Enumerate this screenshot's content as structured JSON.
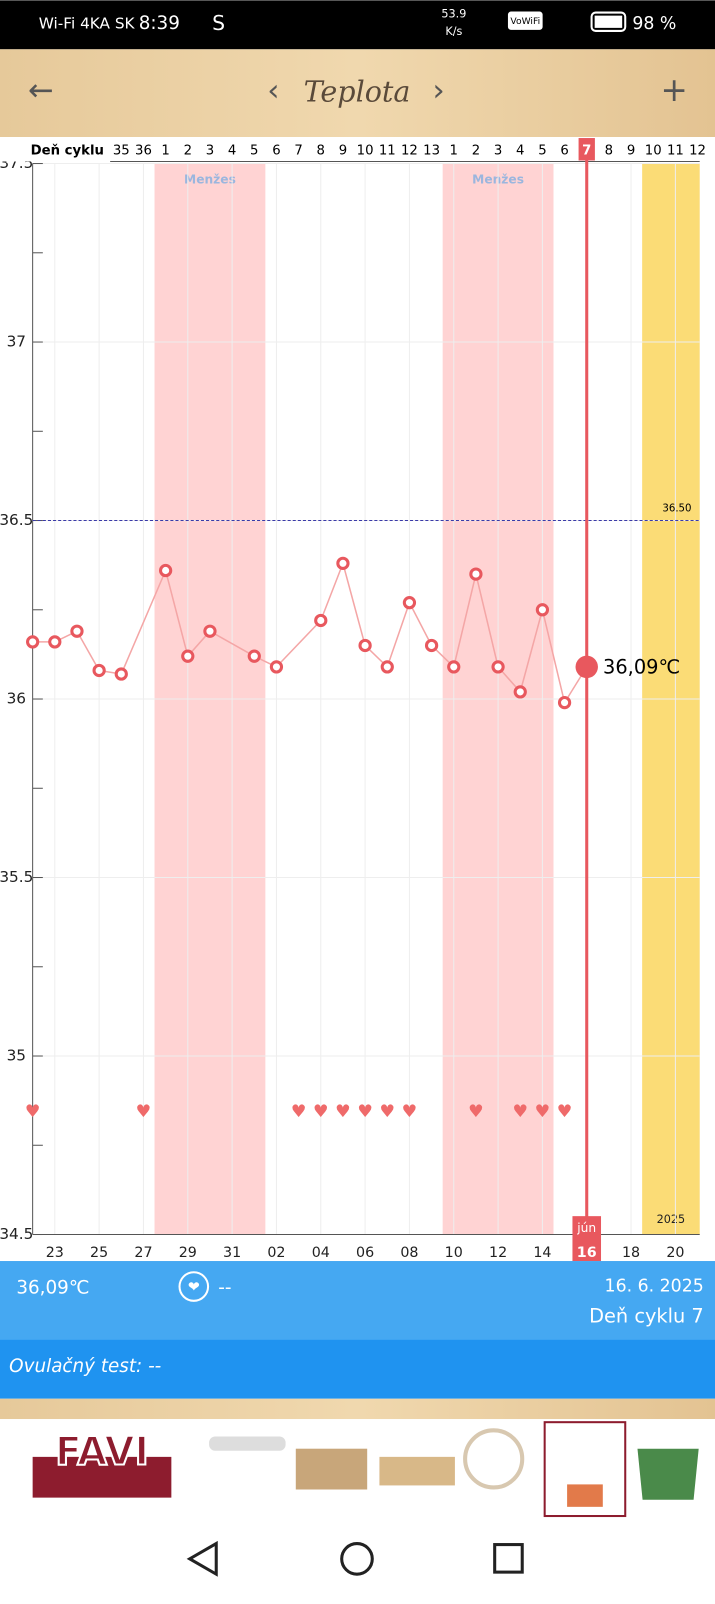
{
  "status_bar": {
    "carrier": "Wi-Fi 4KA SK",
    "time": "8:39",
    "app": "S",
    "speed": "53.9",
    "speed_unit": "K/s",
    "vowifi": "VoWiFi",
    "battery": "98 %"
  },
  "header": {
    "back": "←",
    "prev": "‹",
    "title": "Teplota",
    "next": "›",
    "add": "+"
  },
  "chart": {
    "type": "line",
    "cycle_label": "Deň cyklu",
    "cycle_days": [
      null,
      null,
      null,
      null,
      35,
      36,
      1,
      2,
      3,
      4,
      5,
      6,
      7,
      8,
      9,
      10,
      11,
      12,
      13,
      1,
      2,
      3,
      4,
      5,
      6,
      7,
      8,
      9,
      10,
      11,
      12
    ],
    "dates": [
      null,
      "23",
      null,
      "25",
      null,
      "27",
      null,
      "29",
      null,
      "31",
      null,
      "02",
      null,
      "04",
      null,
      "06",
      null,
      "08",
      null,
      "10",
      null,
      "12",
      null,
      "14",
      null,
      "16",
      null,
      "18",
      null,
      "20",
      null
    ],
    "values": [
      36.16,
      36.16,
      36.19,
      36.08,
      36.07,
      null,
      36.36,
      36.12,
      36.19,
      null,
      36.12,
      36.09,
      null,
      36.22,
      36.38,
      36.15,
      36.09,
      36.27,
      36.15,
      36.09,
      36.35,
      36.09,
      36.02,
      36.25,
      35.99,
      36.09,
      null,
      null,
      null,
      null,
      null
    ],
    "hearts": [
      true,
      false,
      false,
      false,
      false,
      true,
      false,
      false,
      false,
      false,
      false,
      false,
      true,
      true,
      true,
      true,
      true,
      true,
      false,
      false,
      true,
      false,
      true,
      true,
      true,
      false,
      false,
      false,
      false,
      false,
      false
    ],
    "color": "#e8585e",
    "line_color": "#f4a6a6",
    "ylim": [
      34.5,
      37.5
    ],
    "yticks": [
      34.5,
      35,
      35.5,
      36,
      36.5,
      37,
      37.5
    ],
    "yminor": [
      34.75,
      35.25,
      35.75,
      36.25,
      36.75,
      37.25
    ],
    "grid": true,
    "bands": [
      {
        "label": "Menžes",
        "from": 6,
        "to": 10,
        "color": "#ffd3d3"
      },
      {
        "label": "Menžes",
        "from": 19,
        "to": 23,
        "color": "#ffd3d3"
      },
      {
        "label": "2025",
        "from": 28,
        "to": 30,
        "color": "#fbdc76"
      }
    ],
    "reference": {
      "value": 36.5,
      "label": "36.50",
      "color": "#3a3aa8"
    },
    "selected": {
      "index": 25,
      "month": "jún",
      "value_label": "36,09℃"
    }
  },
  "info": {
    "temp": "36,09℃",
    "sex": "--",
    "date": "16. 6. 2025",
    "cycle": "Deň cyklu 7",
    "ovulation": "Ovulačný test: --"
  },
  "ad": {
    "brand": "FAVI"
  }
}
